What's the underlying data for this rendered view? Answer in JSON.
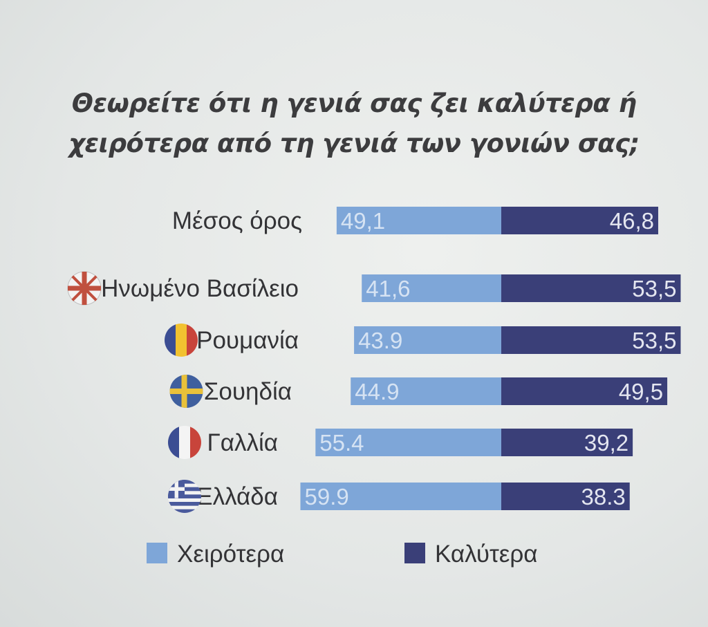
{
  "chart_data": {
    "type": "bar",
    "stacked": true,
    "orientation": "horizontal",
    "title_lines": [
      "Θεωρείτε ότι η γενιά σας ζει καλύτερα ή",
      "χειρότερα από τη γενιά των γονιών σας;"
    ],
    "categories": [
      "Μέσος όρος",
      "Ηνωμένο Βασίλειο",
      "Ρουμανία",
      "Σουηδία",
      "Γαλλία",
      "Ελλάδα"
    ],
    "category_flags": [
      "",
      "uk-flag-icon",
      "romania-flag-icon",
      "sweden-flag-icon",
      "france-flag-icon",
      "greece-flag-icon"
    ],
    "series": [
      {
        "name": "Χειρότερα",
        "values": [
          49.1,
          41.6,
          43.9,
          44.9,
          55.4,
          59.9
        ],
        "labels": [
          "49,1",
          "41,6",
          "43.9",
          "44.9",
          "55.4",
          "59.9"
        ],
        "color": "#7ea6d8"
      },
      {
        "name": "Καλύτερα",
        "values": [
          46.8,
          53.5,
          53.5,
          49.5,
          39.2,
          38.3
        ],
        "labels": [
          "46,8",
          "53,5",
          "53,5",
          "49,5",
          "39,2",
          "38.3"
        ],
        "color": "#3a3f78"
      }
    ],
    "legend_position": "bottom",
    "grid": false
  }
}
